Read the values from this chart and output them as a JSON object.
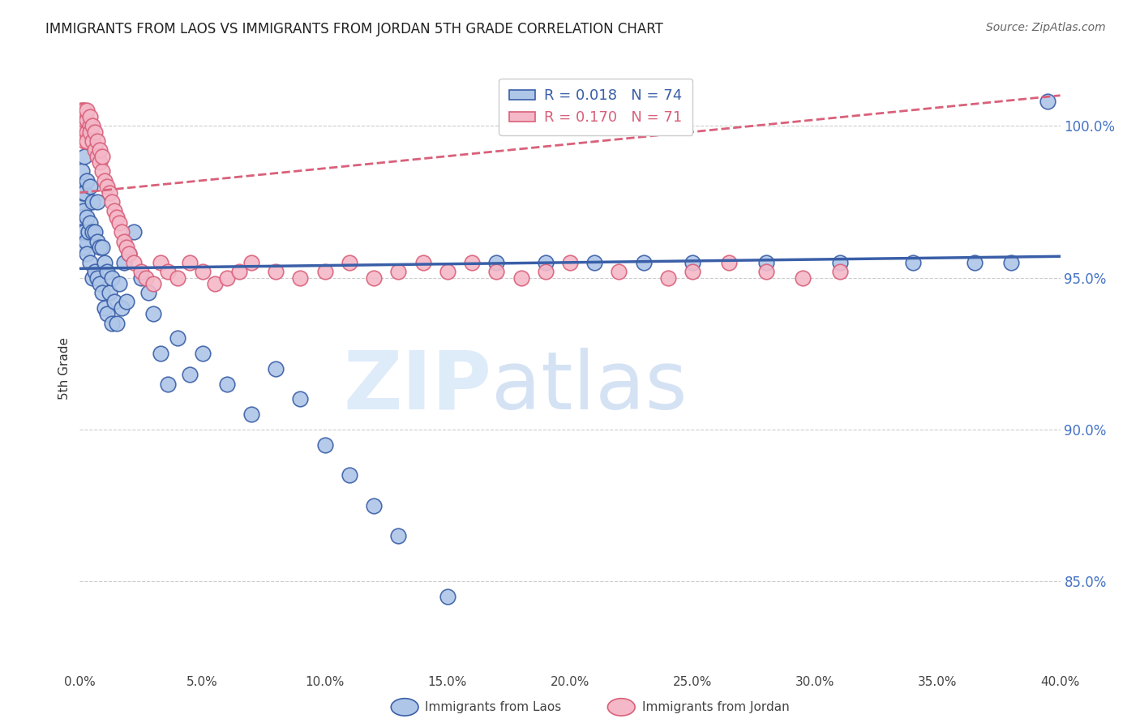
{
  "title": "IMMIGRANTS FROM LAOS VS IMMIGRANTS FROM JORDAN 5TH GRADE CORRELATION CHART",
  "source": "Source: ZipAtlas.com",
  "ylabel": "5th Grade",
  "xlim": [
    0.0,
    0.4
  ],
  "ylim": [
    82.0,
    102.0
  ],
  "laos_R": "0.018",
  "laos_N": "74",
  "jordan_R": "0.170",
  "jordan_N": "71",
  "laos_color": "#aec6e8",
  "jordan_color": "#f4b8c8",
  "laos_line_color": "#3a5fa8",
  "jordan_line_color": "#d9607a",
  "legend_laos_label": "Immigrants from Laos",
  "legend_jordan_label": "Immigrants from Jordan",
  "laos_x": [
    0.0003,
    0.0005,
    0.0008,
    0.001,
    0.001,
    0.0012,
    0.0015,
    0.0015,
    0.002,
    0.002,
    0.002,
    0.0025,
    0.003,
    0.003,
    0.003,
    0.0035,
    0.004,
    0.004,
    0.004,
    0.005,
    0.005,
    0.005,
    0.006,
    0.006,
    0.007,
    0.007,
    0.007,
    0.008,
    0.008,
    0.009,
    0.009,
    0.01,
    0.01,
    0.011,
    0.011,
    0.012,
    0.013,
    0.013,
    0.014,
    0.015,
    0.016,
    0.017,
    0.018,
    0.019,
    0.02,
    0.022,
    0.025,
    0.028,
    0.03,
    0.033,
    0.036,
    0.04,
    0.045,
    0.05,
    0.06,
    0.07,
    0.08,
    0.09,
    0.1,
    0.11,
    0.12,
    0.13,
    0.15,
    0.17,
    0.19,
    0.21,
    0.23,
    0.25,
    0.28,
    0.31,
    0.34,
    0.365,
    0.38,
    0.395
  ],
  "laos_y": [
    97.5,
    98.0,
    97.0,
    96.5,
    98.5,
    97.8,
    96.0,
    97.2,
    96.5,
    97.8,
    99.0,
    96.2,
    95.8,
    97.0,
    98.2,
    96.5,
    95.5,
    96.8,
    98.0,
    95.0,
    96.5,
    97.5,
    95.2,
    96.5,
    95.0,
    96.2,
    97.5,
    94.8,
    96.0,
    94.5,
    96.0,
    94.0,
    95.5,
    93.8,
    95.2,
    94.5,
    93.5,
    95.0,
    94.2,
    93.5,
    94.8,
    94.0,
    95.5,
    94.2,
    95.8,
    96.5,
    95.0,
    94.5,
    93.8,
    92.5,
    91.5,
    93.0,
    91.8,
    92.5,
    91.5,
    90.5,
    92.0,
    91.0,
    89.5,
    88.5,
    87.5,
    86.5,
    84.5,
    95.5,
    95.5,
    95.5,
    95.5,
    95.5,
    95.5,
    95.5,
    95.5,
    95.5,
    95.5,
    100.8
  ],
  "jordan_x": [
    0.0002,
    0.0005,
    0.0008,
    0.001,
    0.001,
    0.0012,
    0.0015,
    0.002,
    0.002,
    0.002,
    0.003,
    0.003,
    0.003,
    0.003,
    0.004,
    0.004,
    0.004,
    0.005,
    0.005,
    0.006,
    0.006,
    0.007,
    0.007,
    0.008,
    0.008,
    0.009,
    0.009,
    0.01,
    0.011,
    0.012,
    0.013,
    0.014,
    0.015,
    0.016,
    0.017,
    0.018,
    0.019,
    0.02,
    0.022,
    0.025,
    0.027,
    0.03,
    0.033,
    0.036,
    0.04,
    0.045,
    0.05,
    0.055,
    0.06,
    0.065,
    0.07,
    0.08,
    0.09,
    0.1,
    0.11,
    0.12,
    0.13,
    0.14,
    0.15,
    0.16,
    0.17,
    0.18,
    0.19,
    0.2,
    0.22,
    0.24,
    0.25,
    0.265,
    0.28,
    0.295,
    0.31
  ],
  "jordan_y": [
    100.2,
    100.5,
    100.0,
    99.8,
    100.3,
    100.5,
    100.0,
    99.5,
    100.2,
    100.5,
    99.8,
    100.2,
    100.5,
    99.5,
    100.0,
    100.3,
    99.8,
    99.5,
    100.0,
    99.2,
    99.8,
    99.0,
    99.5,
    98.8,
    99.2,
    98.5,
    99.0,
    98.2,
    98.0,
    97.8,
    97.5,
    97.2,
    97.0,
    96.8,
    96.5,
    96.2,
    96.0,
    95.8,
    95.5,
    95.2,
    95.0,
    94.8,
    95.5,
    95.2,
    95.0,
    95.5,
    95.2,
    94.8,
    95.0,
    95.2,
    95.5,
    95.2,
    95.0,
    95.2,
    95.5,
    95.0,
    95.2,
    95.5,
    95.2,
    95.5,
    95.2,
    95.0,
    95.2,
    95.5,
    95.2,
    95.0,
    95.2,
    95.5,
    95.2,
    95.0,
    95.2
  ],
  "laos_trend_x": [
    0.0,
    0.4
  ],
  "laos_trend_y": [
    95.3,
    95.7
  ],
  "jordan_trend_x": [
    0.0,
    0.4
  ],
  "jordan_trend_y": [
    97.8,
    101.0
  ],
  "watermark_zip": "ZIP",
  "watermark_atlas": "atlas",
  "grid_color": "#cccccc",
  "bg_color": "#ffffff",
  "ytick_vals": [
    85.0,
    90.0,
    95.0,
    100.0
  ],
  "ytick_labels": [
    "85.0%",
    "90.0%",
    "95.0%",
    "100.0%"
  ]
}
